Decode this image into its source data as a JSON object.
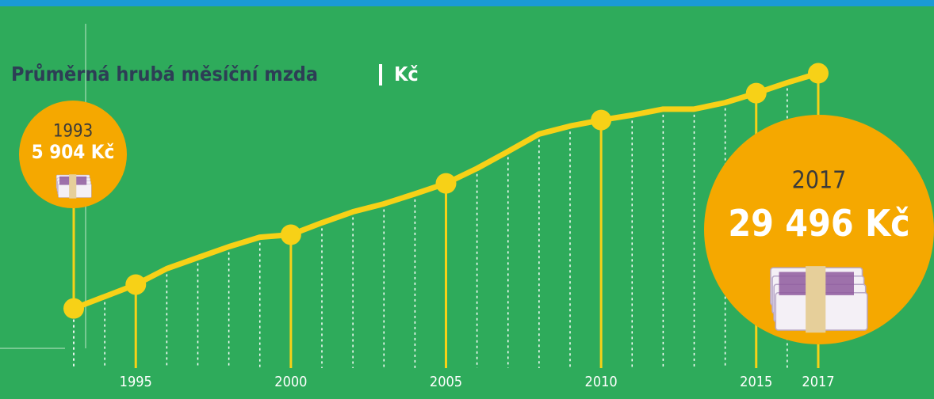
{
  "chart_data": {
    "type": "line",
    "title": "Průměrná hrubá měsíční mzda",
    "unit": "Kč",
    "x": [
      1993,
      1994,
      1995,
      1996,
      1997,
      1998,
      1999,
      2000,
      2001,
      2002,
      2003,
      2004,
      2005,
      2006,
      2007,
      2008,
      2009,
      2010,
      2011,
      2012,
      2013,
      2014,
      2015,
      2016,
      2017
    ],
    "values": [
      5904,
      7100,
      8300,
      9900,
      11000,
      12100,
      13050,
      13300,
      14500,
      15600,
      16400,
      17400,
      18450,
      19950,
      21650,
      23400,
      24200,
      24800,
      25300,
      25900,
      25900,
      26550,
      27500,
      28550,
      29496
    ],
    "value_labels": [
      "5 904 Kč",
      null,
      null,
      null,
      null,
      null,
      null,
      null,
      null,
      null,
      null,
      null,
      null,
      null,
      null,
      null,
      null,
      null,
      null,
      null,
      null,
      null,
      null,
      null,
      "29 496 Kč"
    ],
    "xlim": [
      1993,
      2017
    ],
    "xticks": [
      1995,
      2000,
      2005,
      2010,
      2015,
      2017
    ],
    "ylim": [
      0,
      32000
    ],
    "color": "#f7d117",
    "callout_color": "#f5a800"
  }
}
